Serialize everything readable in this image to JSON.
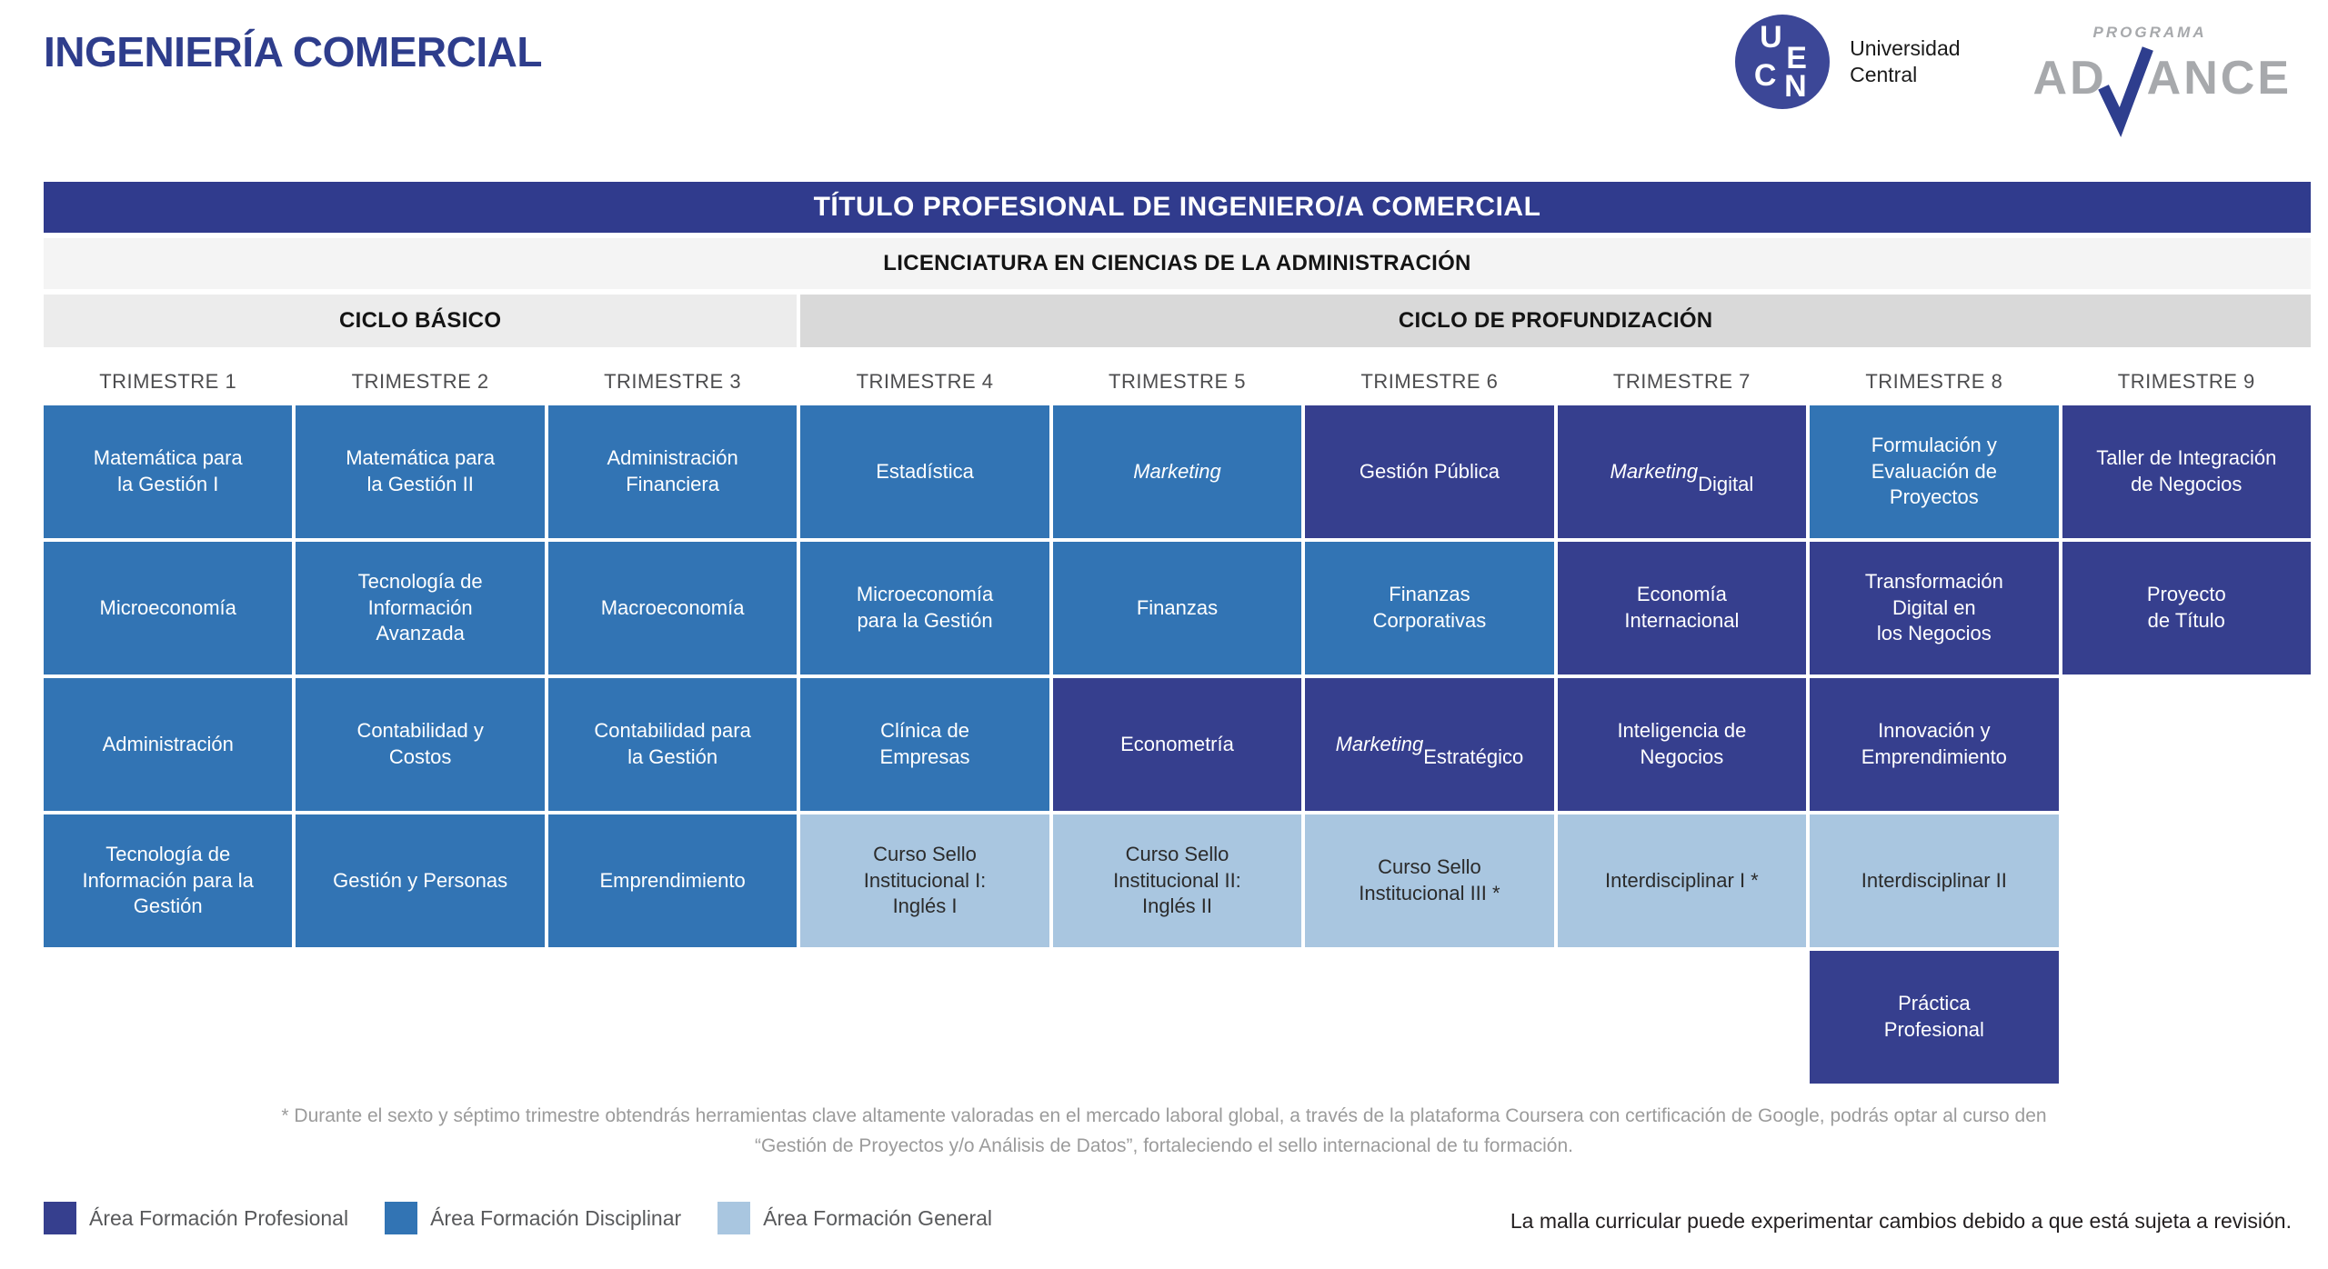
{
  "page_title": "INGENIERÍA COMERCIAL",
  "logos": {
    "ucen": {
      "letters": [
        "U",
        "C",
        "E",
        "N"
      ],
      "name_line1": "Universidad",
      "name_line2": "Central"
    },
    "advance": {
      "kicker": "PROGRAMA",
      "name_left": "AD",
      "name_right": "ANCE",
      "check_color": "#2e3e8e"
    }
  },
  "header": {
    "degree_title": "TÍTULO PROFESIONAL DE INGENIERO/A COMERCIAL",
    "bachelor": "LICENCIATURA EN CIENCIAS DE LA ADMINISTRACIÓN",
    "cycles": [
      {
        "label": "CICLO BÁSICO",
        "span": 3
      },
      {
        "label": "CICLO DE PROFUNDIZACIÓN",
        "span": 6
      }
    ],
    "trimesters": [
      "TRIMESTRE 1",
      "TRIMESTRE 2",
      "TRIMESTRE 3",
      "TRIMESTRE 4",
      "TRIMESTRE 5",
      "TRIMESTRE 6",
      "TRIMESTRE 7",
      "TRIMESTRE 8",
      "TRIMESTRE 9"
    ]
  },
  "areas": {
    "P": {
      "name": "profesional",
      "color": "#363f8e",
      "text": "#ffffff"
    },
    "D": {
      "name": "disciplinar",
      "color": "#3274b4",
      "text": "#ffffff"
    },
    "G": {
      "name": "general",
      "color": "#a9c6e0",
      "text": "#2b2b2b"
    }
  },
  "grid": {
    "rows": [
      [
        {
          "area": "D",
          "parts": [
            {
              "text": "Matemática para\nla Gestión I"
            }
          ]
        },
        {
          "area": "D",
          "parts": [
            {
              "text": "Matemática para\nla Gestión II"
            }
          ]
        },
        {
          "area": "D",
          "parts": [
            {
              "text": "Administración\nFinanciera"
            }
          ]
        },
        {
          "area": "D",
          "parts": [
            {
              "text": "Estadística"
            }
          ]
        },
        {
          "area": "D",
          "parts": [
            {
              "text": "Marketing",
              "italic": true
            }
          ]
        },
        {
          "area": "P",
          "parts": [
            {
              "text": "Gestión Pública"
            }
          ]
        },
        {
          "area": "P",
          "parts": [
            {
              "text": "Marketing",
              "italic": true
            },
            {
              "text": "\nDigital"
            }
          ]
        },
        {
          "area": "D",
          "parts": [
            {
              "text": "Formulación y\nEvaluación de\nProyectos"
            }
          ]
        },
        {
          "area": "P",
          "parts": [
            {
              "text": "Taller de Integración\nde Negocios"
            }
          ]
        }
      ],
      [
        {
          "area": "D",
          "parts": [
            {
              "text": "Microeconomía"
            }
          ]
        },
        {
          "area": "D",
          "parts": [
            {
              "text": "Tecnología de\nInformación\nAvanzada"
            }
          ]
        },
        {
          "area": "D",
          "parts": [
            {
              "text": "Macroeconomía"
            }
          ]
        },
        {
          "area": "D",
          "parts": [
            {
              "text": "Microeconomía\npara la Gestión"
            }
          ]
        },
        {
          "area": "D",
          "parts": [
            {
              "text": "Finanzas"
            }
          ]
        },
        {
          "area": "D",
          "parts": [
            {
              "text": "Finanzas\nCorporativas"
            }
          ]
        },
        {
          "area": "P",
          "parts": [
            {
              "text": "Economía\nInternacional"
            }
          ]
        },
        {
          "area": "P",
          "parts": [
            {
              "text": "Transformación\nDigital en\nlos Negocios"
            }
          ]
        },
        {
          "area": "P",
          "parts": [
            {
              "text": "Proyecto\nde Título"
            }
          ]
        }
      ],
      [
        {
          "area": "D",
          "parts": [
            {
              "text": "Administración"
            }
          ]
        },
        {
          "area": "D",
          "parts": [
            {
              "text": "Contabilidad y\nCostos"
            }
          ]
        },
        {
          "area": "D",
          "parts": [
            {
              "text": "Contabilidad para\nla Gestión"
            }
          ]
        },
        {
          "area": "D",
          "parts": [
            {
              "text": "Clínica de\nEmpresas"
            }
          ]
        },
        {
          "area": "P",
          "parts": [
            {
              "text": "Econometría"
            }
          ]
        },
        {
          "area": "P",
          "parts": [
            {
              "text": "Marketing",
              "italic": true
            },
            {
              "text": "\nEstratégico"
            }
          ]
        },
        {
          "area": "P",
          "parts": [
            {
              "text": "Inteligencia de\nNegocios"
            }
          ]
        },
        {
          "area": "P",
          "parts": [
            {
              "text": "Innovación y\nEmprendimiento"
            }
          ]
        },
        null
      ],
      [
        {
          "area": "D",
          "parts": [
            {
              "text": "Tecnología de\nInformación para la\nGestión"
            }
          ]
        },
        {
          "area": "D",
          "parts": [
            {
              "text": "Gestión y Personas"
            }
          ]
        },
        {
          "area": "D",
          "parts": [
            {
              "text": "Emprendimiento"
            }
          ]
        },
        {
          "area": "G",
          "parts": [
            {
              "text": "Curso Sello\nInstitucional I:\nInglés I"
            }
          ]
        },
        {
          "area": "G",
          "parts": [
            {
              "text": "Curso Sello\nInstitucional II:\nInglés II"
            }
          ]
        },
        {
          "area": "G",
          "parts": [
            {
              "text": "Curso Sello\nInstitucional III *"
            }
          ]
        },
        {
          "area": "G",
          "parts": [
            {
              "text": "Interdisciplinar I *"
            }
          ]
        },
        {
          "area": "G",
          "parts": [
            {
              "text": "Interdisciplinar II"
            }
          ]
        },
        null
      ],
      [
        null,
        null,
        null,
        null,
        null,
        null,
        null,
        {
          "area": "P",
          "parts": [
            {
              "text": "Práctica\nProfesional"
            }
          ]
        },
        null
      ]
    ]
  },
  "footnote": "* Durante el sexto y séptimo trimestre obtendrás herramientas clave altamente valoradas en el mercado laboral global, a través de la plataforma Coursera con certificación de Google, podrás optar al curso den\n“Gestión de Proyectos y/o Análisis de Datos”, fortaleciendo el sello internacional de tu formación.",
  "legend": [
    {
      "area": "P",
      "label": "Área Formación Profesional"
    },
    {
      "area": "D",
      "label": "Área Formación Disciplinar"
    },
    {
      "area": "G",
      "label": "Área Formación General"
    }
  ],
  "disclaimer": "La malla curricular puede experimentar cambios debido a que está sujeta a revisión."
}
